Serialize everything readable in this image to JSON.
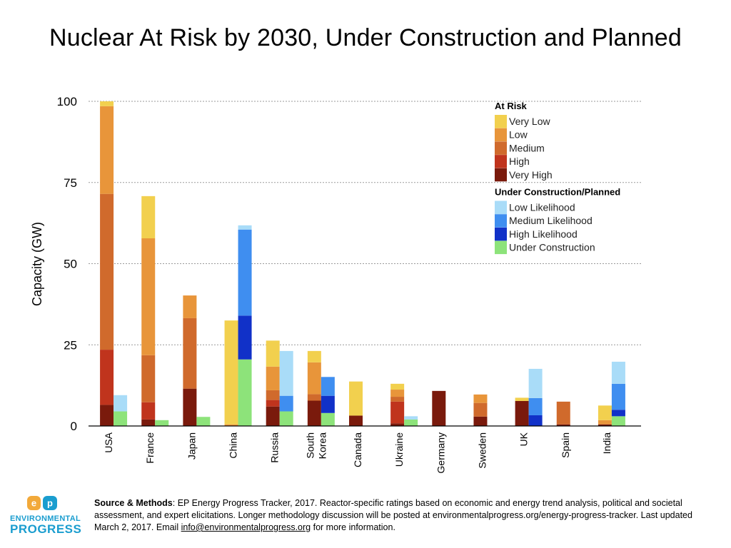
{
  "title": "Nuclear At Risk by 2030, Under Construction and Planned",
  "chart_data": {
    "type": "bar",
    "stacked": true,
    "title": "Nuclear At Risk by 2030, Under Construction and Planned",
    "ylabel": "Capacity (GW)",
    "xlabel": "",
    "ylim": [
      0,
      100
    ],
    "yticks": [
      0,
      25,
      50,
      75,
      100
    ],
    "grid": true,
    "legend_position": "top-right",
    "categories": [
      "USA",
      "France",
      "Japan",
      "China",
      "Russia",
      "South Korea",
      "Canada",
      "Ukraine",
      "Germany",
      "Sweden",
      "UK",
      "Spain",
      "India"
    ],
    "category_label_lines": [
      [
        "USA"
      ],
      [
        "France"
      ],
      [
        "Japan"
      ],
      [
        "China"
      ],
      [
        "Russia"
      ],
      [
        "South",
        "Korea"
      ],
      [
        "Canada"
      ],
      [
        "Ukraine"
      ],
      [
        "Germany"
      ],
      [
        "Sweden"
      ],
      [
        "UK"
      ],
      [
        "Spain"
      ],
      [
        "India"
      ]
    ],
    "groups": [
      {
        "name": "At Risk",
        "series": [
          {
            "name": "Very High",
            "color": "#7a1a0c",
            "values": [
              6.5,
              2,
              11.5,
              0,
              6,
              7.8,
              3.2,
              0.8,
              10.8,
              2.9,
              7.7,
              0.5,
              0.5
            ]
          },
          {
            "name": "High",
            "color": "#c0341d",
            "values": [
              17,
              5.3,
              0,
              0,
              2,
              0,
              0,
              6.7,
              0,
              0,
              0,
              0,
              0
            ]
          },
          {
            "name": "Medium",
            "color": "#d06a2c",
            "values": [
              48,
              14.5,
              21.7,
              0,
              3,
              2,
              0,
              1.5,
              0,
              4.2,
              0,
              7,
              0
            ]
          },
          {
            "name": "Low",
            "color": "#e8953a",
            "values": [
              27,
              36,
              7,
              0.5,
              7.3,
              9.8,
              0,
              2.2,
              0,
              2.6,
              0,
              0,
              1.3
            ]
          },
          {
            "name": "Very Low",
            "color": "#f2d04e",
            "values": [
              1.5,
              13,
              0,
              32,
              8,
              3.5,
              10.5,
              1.8,
              0,
              0,
              1,
              0,
              4.5
            ]
          }
        ]
      },
      {
        "name": "Under Construction/Planned",
        "series": [
          {
            "name": "Under Construction",
            "color": "#8de37a",
            "values": [
              4.5,
              1.8,
              2.8,
              20.5,
              4.5,
              4,
              0,
              2,
              0,
              0,
              0,
              0,
              3
            ]
          },
          {
            "name": "High Likelihood",
            "color": "#1131c8",
            "values": [
              0,
              0,
              0,
              13.5,
              0,
              5.3,
              0,
              0,
              0,
              0,
              3.3,
              0,
              2
            ]
          },
          {
            "name": "Medium Likelihood",
            "color": "#3f8ef0",
            "values": [
              0,
              0,
              0,
              26.5,
              4.8,
              5.8,
              0,
              0,
              0,
              0,
              5.3,
              0,
              8
            ]
          },
          {
            "name": "Low Likelihood",
            "color": "#a9dcf8",
            "values": [
              5,
              0,
              0,
              1.3,
              13.8,
              0,
              0,
              1,
              0,
              0,
              9,
              0,
              6.8
            ]
          }
        ]
      }
    ],
    "legend": [
      {
        "heading": "At Risk",
        "items": [
          {
            "label": "Very Low",
            "color": "#f2d04e"
          },
          {
            "label": "Low",
            "color": "#e8953a"
          },
          {
            "label": "Medium",
            "color": "#d06a2c"
          },
          {
            "label": "High",
            "color": "#c0341d"
          },
          {
            "label": "Very High",
            "color": "#7a1a0c"
          }
        ]
      },
      {
        "heading": "Under Construction/Planned",
        "items": [
          {
            "label": "Low Likelihood",
            "color": "#a9dcf8"
          },
          {
            "label": "Medium Likelihood",
            "color": "#3f8ef0"
          },
          {
            "label": "High Likelihood",
            "color": "#1131c8"
          },
          {
            "label": "Under Construction",
            "color": "#8de37a"
          }
        ]
      }
    ]
  },
  "logo": {
    "mark": "EP",
    "line1": "ENVIRONMENTAL",
    "line2": "PROGRESS",
    "color": "#1a9dcf"
  },
  "source": {
    "heading": "Source & Methods",
    "text": ": EP Energy Progress Tracker, 2017. Reactor-specific ratings based on economic and energy trend analysis, political and societal assessment, and expert elicitations. Longer methodology discussion will be posted at environmentalprogress.org/energy-progress-tracker. Last updated March 2, 2017. Email ",
    "email": "info@environmentalprogress.org",
    "tail": " for more information."
  }
}
